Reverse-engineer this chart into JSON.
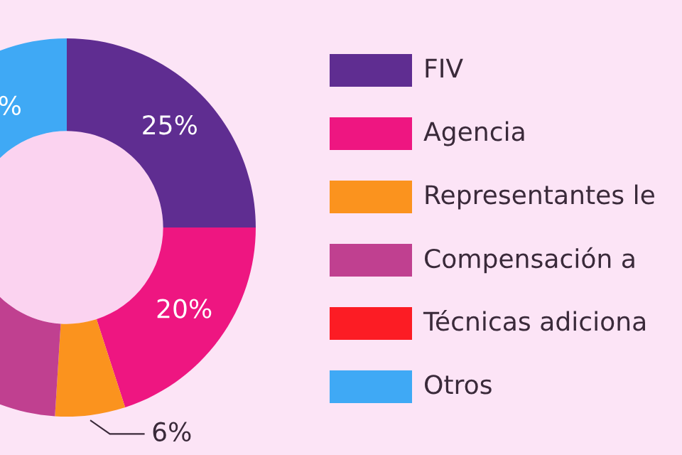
{
  "chart_data": {
    "type": "donut",
    "categories": [
      "FIV",
      "Agencia",
      "Representantes le",
      "Compensación a",
      "Técnicas adiciona",
      "Otros"
    ],
    "values": [
      25,
      20,
      6,
      31,
      null,
      18
    ],
    "value_labels": [
      "25%",
      "20%",
      "6%",
      null,
      null,
      "%"
    ],
    "colors": [
      "#5f2d91",
      "#ee1681",
      "#fb931e",
      "#c04090",
      "#fc1c24",
      "#3fa9f5"
    ],
    "legend": "right"
  }
}
